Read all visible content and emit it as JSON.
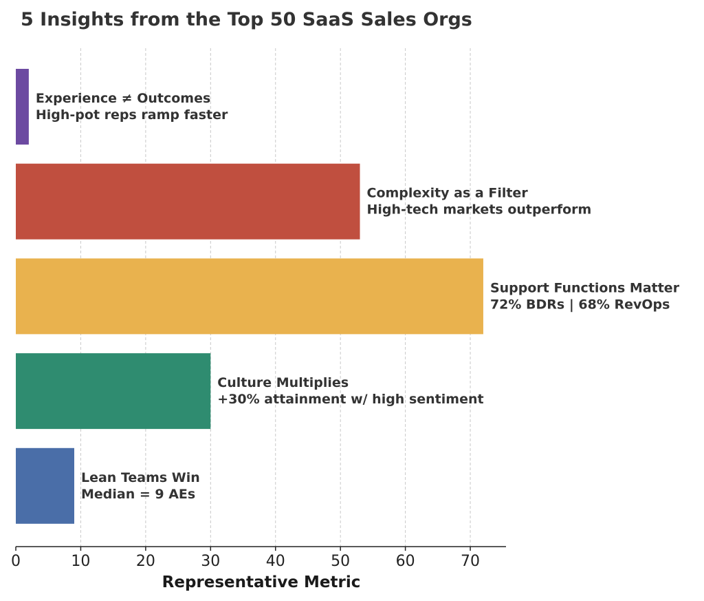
{
  "chart_data": {
    "type": "bar",
    "orientation": "horizontal",
    "title": "5 Insights from the Top 50 SaaS Sales Orgs",
    "xlabel": "Representative Metric",
    "ylabel": "",
    "xlim": [
      0,
      75.5
    ],
    "xticks": [
      0,
      10,
      20,
      30,
      40,
      50,
      60,
      70
    ],
    "grid": "x-dashed",
    "legend": "none",
    "bars": [
      {
        "value": 2,
        "color": "#6c4aa1",
        "lines": [
          "Experience ≠ Outcomes",
          "High-pot reps ramp faster"
        ]
      },
      {
        "value": 53,
        "color": "#c04f3f",
        "lines": [
          "Complexity as a Filter",
          "High-tech markets outperform"
        ]
      },
      {
        "value": 72,
        "color": "#e9b24e",
        "lines": [
          "Support Functions Matter",
          "72% BDRs | 68% RevOps"
        ]
      },
      {
        "value": 30,
        "color": "#2f8c70",
        "lines": [
          "Culture Multiplies",
          "+30% attainment w/ high sentiment"
        ]
      },
      {
        "value": 9,
        "color": "#4a6ea8",
        "lines": [
          "Lean Teams Win",
          "Median = 9 AEs"
        ]
      }
    ]
  }
}
